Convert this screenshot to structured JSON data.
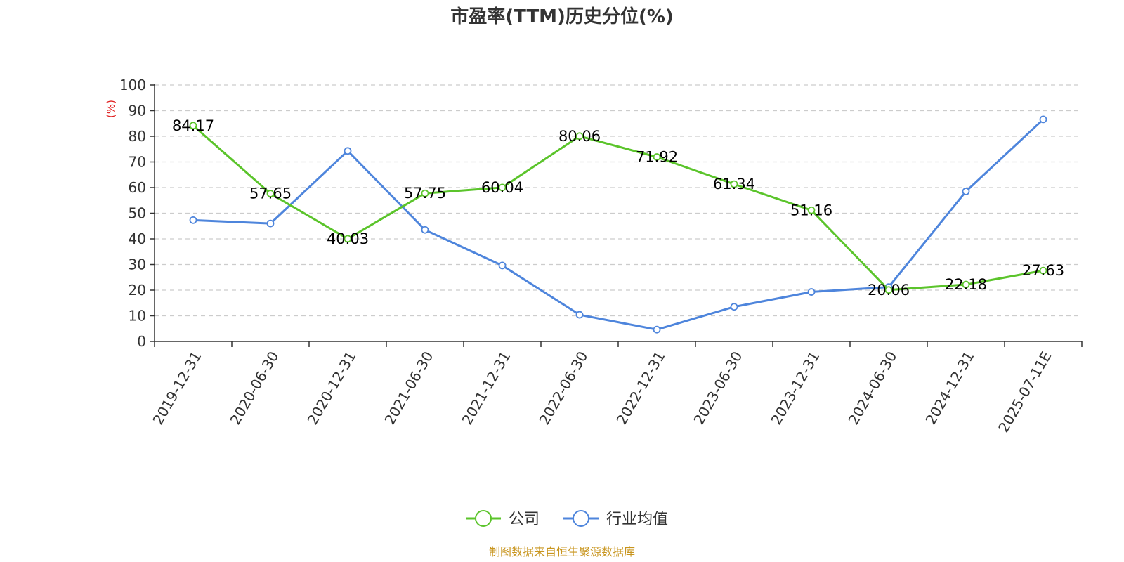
{
  "chart_data": {
    "type": "line",
    "title": "市盈率(TTM)历史分位(%)",
    "ylabel": "(%)",
    "xlabel": "",
    "ylim": [
      0,
      100
    ],
    "yticks": [
      0,
      10,
      20,
      30,
      40,
      50,
      60,
      70,
      80,
      90,
      100
    ],
    "grid": "horizontal-dashed",
    "legend_position": "bottom-center",
    "categories": [
      "2019-12-31",
      "2020-06-30",
      "2020-12-31",
      "2021-06-30",
      "2021-12-31",
      "2022-06-30",
      "2022-12-31",
      "2023-06-30",
      "2023-12-31",
      "2024-06-30",
      "2024-12-31",
      "2025-07-11E"
    ],
    "series": [
      {
        "name": "公司",
        "color": "#5bc42b",
        "values": [
          84.17,
          57.65,
          40.03,
          57.75,
          60.04,
          80.06,
          71.92,
          61.34,
          51.16,
          20.06,
          22.18,
          27.63
        ],
        "labels": [
          "84.17",
          "57.65",
          "40.03",
          "57.75",
          "60.04",
          "80.06",
          "71.92",
          "61.34",
          "51.16",
          "20.06",
          "22.18",
          "27.63"
        ]
      },
      {
        "name": "行业均值",
        "color": "#4e85dc",
        "values": [
          47.3,
          46.0,
          74.3,
          43.5,
          29.6,
          10.4,
          4.6,
          13.5,
          19.3,
          21.2,
          58.5,
          86.6
        ]
      }
    ],
    "ylabel_color": "#e02020"
  },
  "source_text": "制图数据来自恒生聚源数据库",
  "source_color": "#c8951e"
}
